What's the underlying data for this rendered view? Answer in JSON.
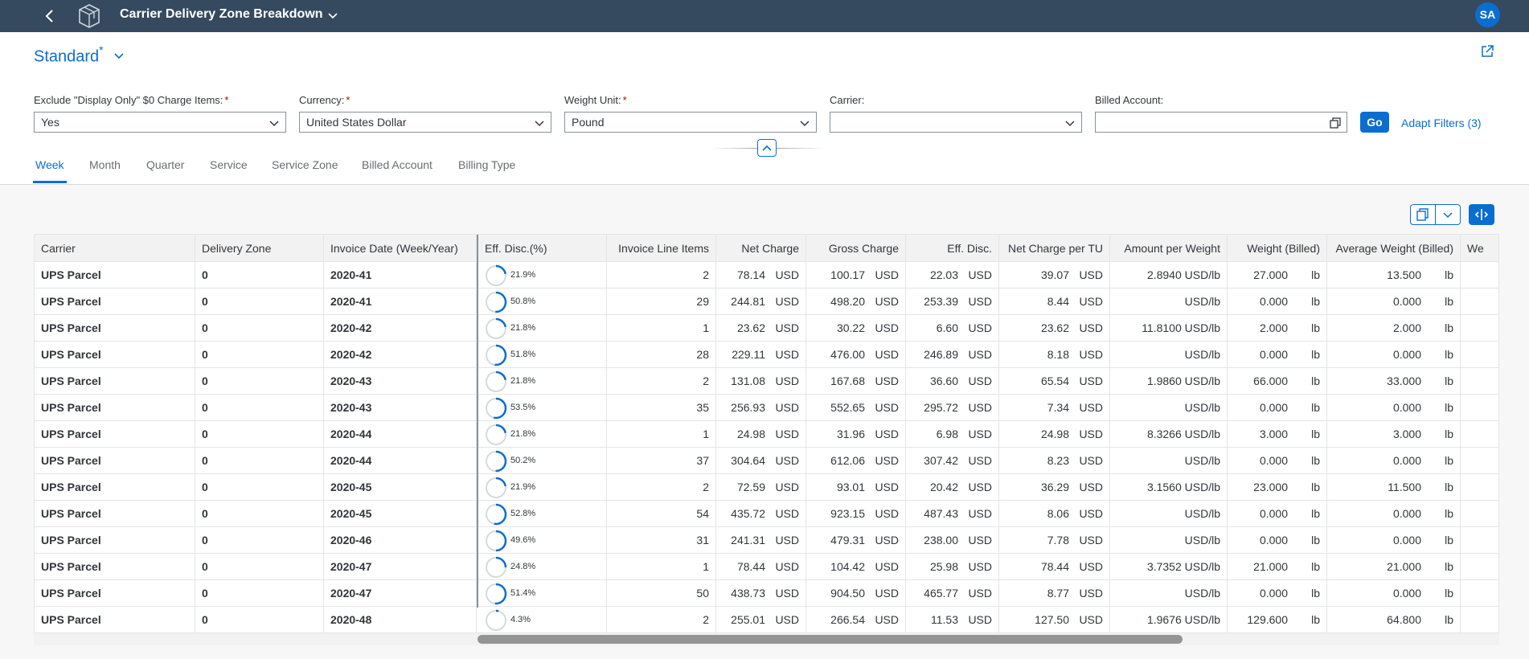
{
  "shell": {
    "title": "Carrier Delivery Zone Breakdown",
    "avatar": "SA"
  },
  "variant": {
    "name": "Standard",
    "modified": "*"
  },
  "filters": [
    {
      "label": "Exclude \"Display Only\" $0 Charge Items:",
      "value": "Yes",
      "required": true,
      "control": "dropdown"
    },
    {
      "label": "Currency:",
      "value": "United States Dollar",
      "required": true,
      "control": "dropdown"
    },
    {
      "label": "Weight Unit:",
      "value": "Pound",
      "required": true,
      "control": "dropdown"
    },
    {
      "label": "Carrier:",
      "value": "",
      "required": false,
      "control": "dropdown"
    },
    {
      "label": "Billed Account:",
      "value": "",
      "required": false,
      "control": "valuehelp"
    }
  ],
  "go_label": "Go",
  "adapt_label": "Adapt Filters (3)",
  "tabs": [
    "Week",
    "Month",
    "Quarter",
    "Service",
    "Service Zone",
    "Billed Account",
    "Billing Type"
  ],
  "active_tab": "Week",
  "columns": [
    "Carrier",
    "Delivery Zone",
    "Invoice Date (Week/Year)",
    "Eff. Disc.(%)",
    "Invoice Line Items",
    "Net Charge",
    "Gross Charge",
    "Eff. Disc.",
    "Net Charge per TU",
    "Amount per Weight",
    "Weight (Billed)",
    "Average Weight (Billed)",
    "We"
  ],
  "currency_unit": "USD",
  "weight_unit": "lb",
  "rows": [
    {
      "carrier": "UPS Parcel",
      "zone": "0",
      "week": "2020-41",
      "disc_pct": 21.9,
      "disc_label": "21.9%",
      "items": "2",
      "net": "78.14",
      "gross": "100.17",
      "eff": "22.03",
      "per_tu": "39.07",
      "apw": "2.8940 USD/lb",
      "weight": "27.000",
      "avg": "13.500"
    },
    {
      "carrier": "UPS Parcel",
      "zone": "0",
      "week": "2020-41",
      "disc_pct": 50.8,
      "disc_label": "50.8%",
      "items": "29",
      "net": "244.81",
      "gross": "498.20",
      "eff": "253.39",
      "per_tu": "8.44",
      "apw": "USD/lb",
      "weight": "0.000",
      "avg": "0.000"
    },
    {
      "carrier": "UPS Parcel",
      "zone": "0",
      "week": "2020-42",
      "disc_pct": 21.8,
      "disc_label": "21.8%",
      "items": "1",
      "net": "23.62",
      "gross": "30.22",
      "eff": "6.60",
      "per_tu": "23.62",
      "apw": "11.8100 USD/lb",
      "weight": "2.000",
      "avg": "2.000"
    },
    {
      "carrier": "UPS Parcel",
      "zone": "0",
      "week": "2020-42",
      "disc_pct": 51.8,
      "disc_label": "51.8%",
      "items": "28",
      "net": "229.11",
      "gross": "476.00",
      "eff": "246.89",
      "per_tu": "8.18",
      "apw": "USD/lb",
      "weight": "0.000",
      "avg": "0.000"
    },
    {
      "carrier": "UPS Parcel",
      "zone": "0",
      "week": "2020-43",
      "disc_pct": 21.8,
      "disc_label": "21.8%",
      "items": "2",
      "net": "131.08",
      "gross": "167.68",
      "eff": "36.60",
      "per_tu": "65.54",
      "apw": "1.9860 USD/lb",
      "weight": "66.000",
      "avg": "33.000"
    },
    {
      "carrier": "UPS Parcel",
      "zone": "0",
      "week": "2020-43",
      "disc_pct": 53.5,
      "disc_label": "53.5%",
      "items": "35",
      "net": "256.93",
      "gross": "552.65",
      "eff": "295.72",
      "per_tu": "7.34",
      "apw": "USD/lb",
      "weight": "0.000",
      "avg": "0.000"
    },
    {
      "carrier": "UPS Parcel",
      "zone": "0",
      "week": "2020-44",
      "disc_pct": 21.8,
      "disc_label": "21.8%",
      "items": "1",
      "net": "24.98",
      "gross": "31.96",
      "eff": "6.98",
      "per_tu": "24.98",
      "apw": "8.3266 USD/lb",
      "weight": "3.000",
      "avg": "3.000"
    },
    {
      "carrier": "UPS Parcel",
      "zone": "0",
      "week": "2020-44",
      "disc_pct": 50.2,
      "disc_label": "50.2%",
      "items": "37",
      "net": "304.64",
      "gross": "612.06",
      "eff": "307.42",
      "per_tu": "8.23",
      "apw": "USD/lb",
      "weight": "0.000",
      "avg": "0.000"
    },
    {
      "carrier": "UPS Parcel",
      "zone": "0",
      "week": "2020-45",
      "disc_pct": 21.9,
      "disc_label": "21.9%",
      "items": "2",
      "net": "72.59",
      "gross": "93.01",
      "eff": "20.42",
      "per_tu": "36.29",
      "apw": "3.1560 USD/lb",
      "weight": "23.000",
      "avg": "11.500"
    },
    {
      "carrier": "UPS Parcel",
      "zone": "0",
      "week": "2020-45",
      "disc_pct": 52.8,
      "disc_label": "52.8%",
      "items": "54",
      "net": "435.72",
      "gross": "923.15",
      "eff": "487.43",
      "per_tu": "8.06",
      "apw": "USD/lb",
      "weight": "0.000",
      "avg": "0.000"
    },
    {
      "carrier": "UPS Parcel",
      "zone": "0",
      "week": "2020-46",
      "disc_pct": 49.6,
      "disc_label": "49.6%",
      "items": "31",
      "net": "241.31",
      "gross": "479.31",
      "eff": "238.00",
      "per_tu": "7.78",
      "apw": "USD/lb",
      "weight": "0.000",
      "avg": "0.000"
    },
    {
      "carrier": "UPS Parcel",
      "zone": "0",
      "week": "2020-47",
      "disc_pct": 24.8,
      "disc_label": "24.8%",
      "items": "1",
      "net": "78.44",
      "gross": "104.42",
      "eff": "25.98",
      "per_tu": "78.44",
      "apw": "3.7352 USD/lb",
      "weight": "21.000",
      "avg": "21.000"
    },
    {
      "carrier": "UPS Parcel",
      "zone": "0",
      "week": "2020-47",
      "disc_pct": 51.4,
      "disc_label": "51.4%",
      "items": "50",
      "net": "438.73",
      "gross": "904.50",
      "eff": "465.77",
      "per_tu": "8.77",
      "apw": "USD/lb",
      "weight": "0.000",
      "avg": "0.000"
    },
    {
      "carrier": "UPS Parcel",
      "zone": "0",
      "week": "2020-48",
      "disc_pct": 4.3,
      "disc_label": "4.3%",
      "items": "2",
      "net": "255.01",
      "gross": "266.54",
      "eff": "11.53",
      "per_tu": "127.50",
      "apw": "1.9676 USD/lb",
      "weight": "129.600",
      "avg": "64.800"
    }
  ],
  "colors": {
    "shell": "#354a5f",
    "accent": "#0a6ed1",
    "required": "#bb0000"
  }
}
